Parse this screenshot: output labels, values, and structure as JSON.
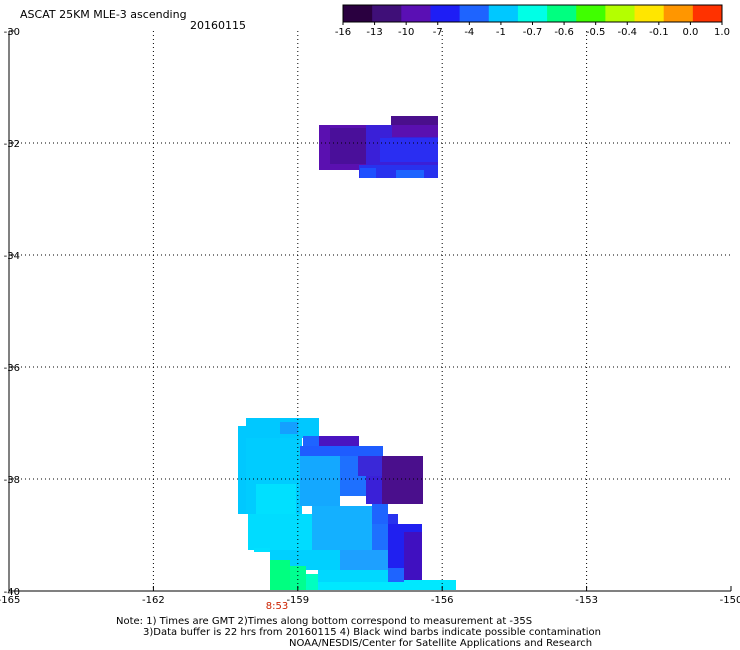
{
  "header": {
    "title": "ASCAT 25KM MLE-3 ascending",
    "date": "20160115"
  },
  "colorbar": {
    "labels": [
      "-16",
      "-13",
      "-10",
      "-7",
      "-4",
      "-1",
      "-0.7",
      "-0.6",
      "-0.5",
      "-0.4",
      "-0.1",
      "0.0",
      "1.0"
    ],
    "colors": [
      "#2a0040",
      "#3f0f78",
      "#5a0fb4",
      "#1e1ef5",
      "#1e64ff",
      "#00c8ff",
      "#00ffe6",
      "#00ff80",
      "#40ff00",
      "#b4ff00",
      "#ffe600",
      "#ff9600",
      "#ff3200"
    ]
  },
  "map": {
    "lon_range": [
      -165,
      -150
    ],
    "lat_range": [
      -40,
      -30
    ],
    "x_ticks": [
      "-165",
      "-162",
      "-159",
      "-156",
      "-153",
      "-150"
    ],
    "y_ticks": [
      "-30",
      "-32",
      "-34",
      "-36",
      "-38",
      "-40"
    ],
    "time_label": "8:53",
    "time_label_color": "#cc2200"
  },
  "notes": {
    "line1": "Note: 1) Times are GMT 2)Times along bottom correspond to measurement at -35S",
    "line2": "3)Data buffer is 22 hrs from 20160115 4) Black wind barbs indicate possible contamination",
    "line3": "NOAA/NESDIS/Center for Satellite Applications and Research"
  }
}
